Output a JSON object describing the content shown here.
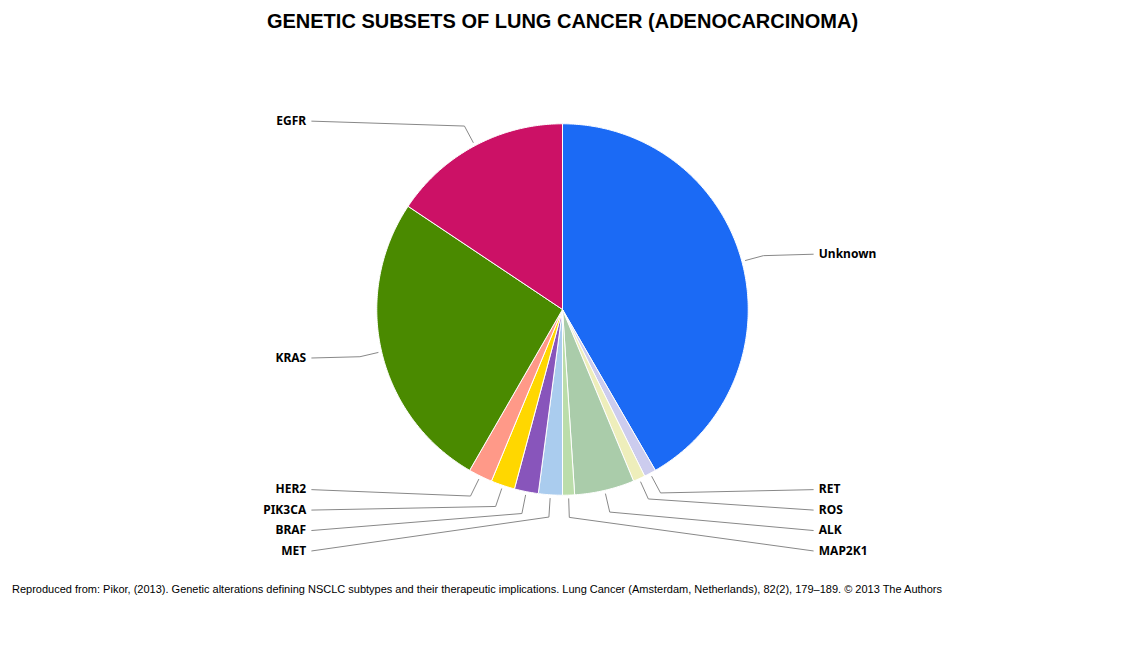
{
  "chart_data": {
    "type": "pie",
    "title": "GENETIC SUBSETS OF LUNG CANCER (ADENOCARCINOMA)",
    "categories": [
      "Unknown",
      "RET",
      "ROS",
      "ALK",
      "MAP2K1",
      "MET",
      "BRAF",
      "PIK3CA",
      "HER2",
      "KRAS",
      "EGFR"
    ],
    "values": [
      40,
      1,
      1,
      5,
      1,
      2,
      2,
      2,
      2,
      25,
      15
    ],
    "colors": [
      "#1B6AF5",
      "#CCCCEE",
      "#EEEEBB",
      "#AACCAA",
      "#BBDDAA",
      "#AACCEE",
      "#8855BB",
      "#FFD700",
      "#FF9988",
      "#4A8A00",
      "#CC1166"
    ],
    "caption": "Reproduced from: Pikor, (2013). Genetic alterations defining NSCLC subtypes and their therapeutic implications. Lung Cancer (Amsterdam, Netherlands), 82(2), 179–189. © 2013 The Authors"
  }
}
